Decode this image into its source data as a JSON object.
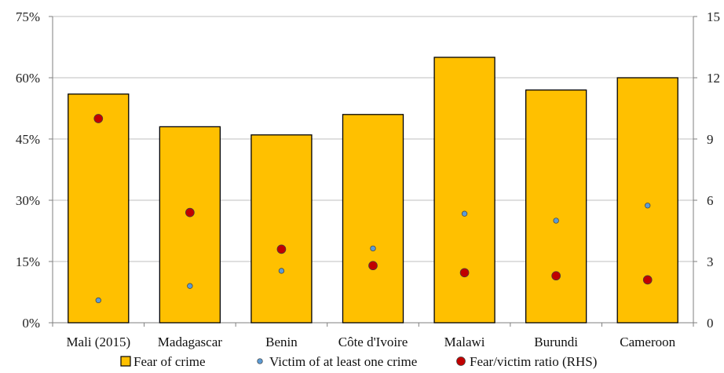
{
  "chart_data": {
    "type": "bar",
    "categories": [
      "Mali (2015)",
      "Madagascar",
      "Benin",
      "Côte d'Ivoire",
      "Malawi",
      "Burundi",
      "Cameroon"
    ],
    "series": [
      {
        "name": "Fear of crime",
        "kind": "bar",
        "axis": "left",
        "color": "#FFC000",
        "values": [
          56,
          48,
          46,
          51,
          65,
          57,
          60
        ]
      },
      {
        "name": "Victim of at least one crime",
        "kind": "dot",
        "axis": "left",
        "color": "#5B9BD5",
        "values": [
          5.5,
          9,
          12.7,
          18.2,
          26.7,
          25,
          28.7
        ]
      },
      {
        "name": "Fear/victim ratio (RHS)",
        "kind": "dot",
        "axis": "right",
        "color": "#C00000",
        "values": [
          10,
          5.4,
          3.6,
          2.8,
          2.45,
          2.3,
          2.1
        ]
      }
    ],
    "y_left": {
      "range": [
        0,
        75
      ],
      "ticks": [
        "0%",
        "15%",
        "30%",
        "45%",
        "60%",
        "75%"
      ],
      "values": [
        0,
        15,
        30,
        45,
        60,
        75
      ]
    },
    "y_right": {
      "range": [
        0,
        15
      ],
      "ticks": [
        "0",
        "3",
        "6",
        "9",
        "12",
        "15"
      ],
      "values": [
        0,
        3,
        6,
        9,
        12,
        15
      ]
    },
    "grid": true,
    "legend": "bottom"
  }
}
